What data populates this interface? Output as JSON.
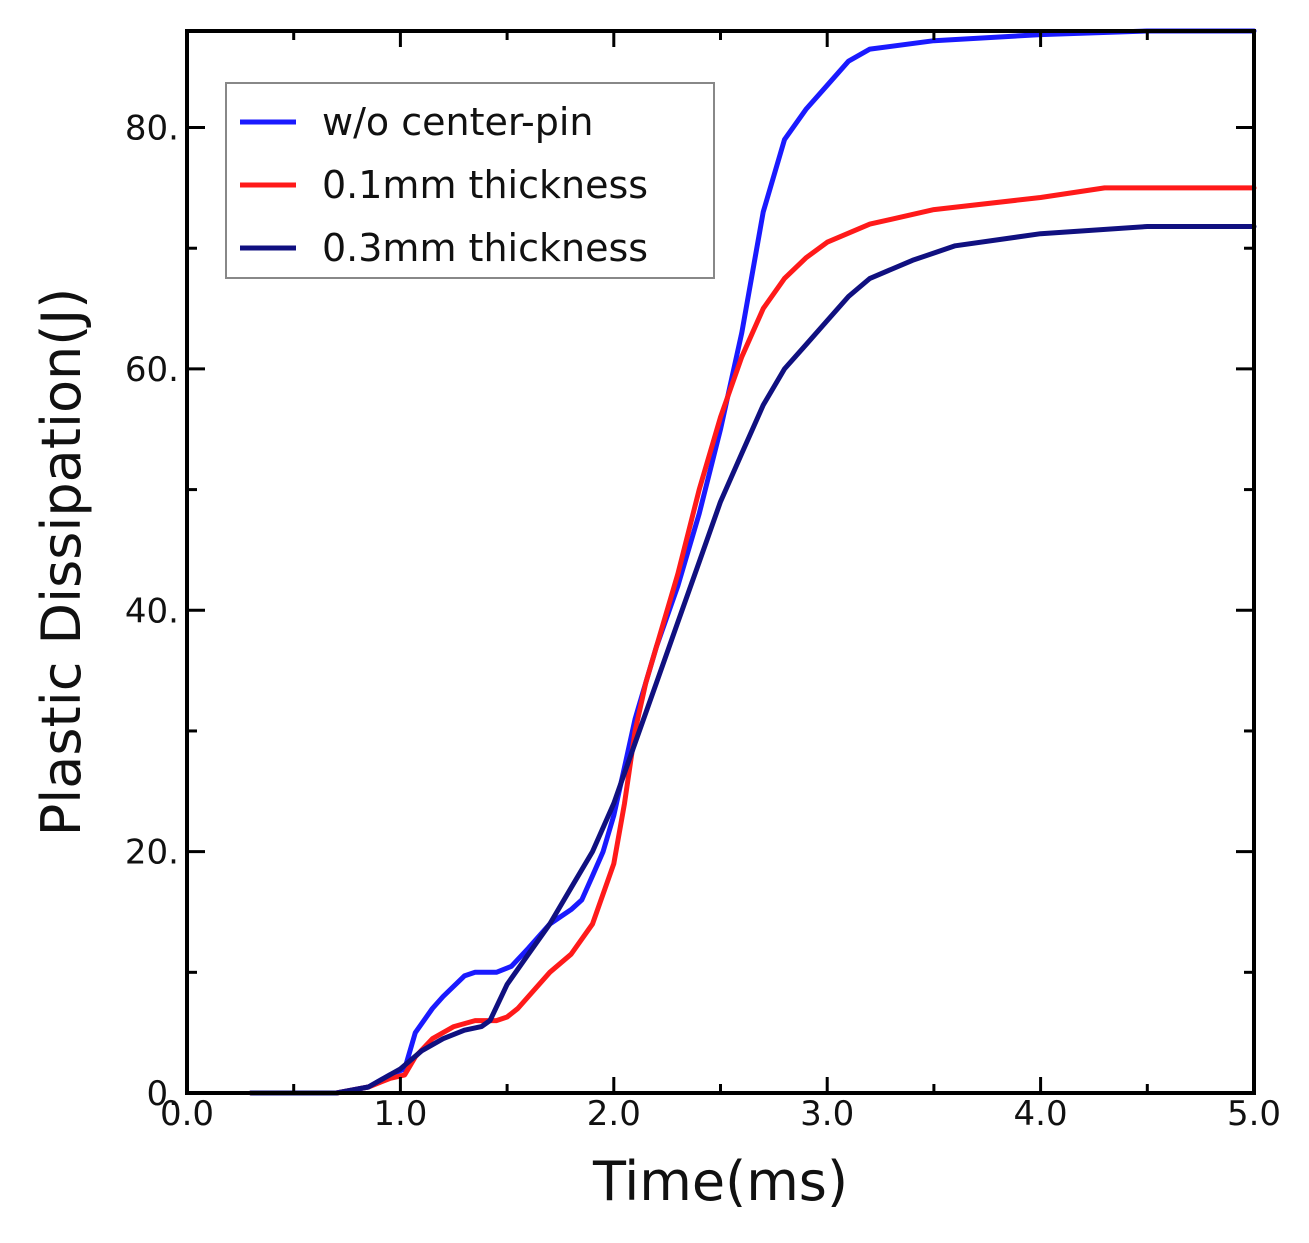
{
  "chart_data": {
    "type": "line",
    "title": "",
    "xlabel": "Time(ms)",
    "ylabel": "Plastic Dissipation(J)",
    "xlim": [
      0,
      5
    ],
    "ylim": [
      0,
      88
    ],
    "x_ticks": [
      0,
      1,
      2,
      3,
      4,
      5
    ],
    "x_tick_labels": [
      "0.0",
      "1.0",
      "2.0",
      "3.0",
      "4.0",
      "5.0"
    ],
    "y_major_ticks": [
      0,
      20,
      40,
      60,
      80
    ],
    "y_tick_labels": [
      "0.",
      "20.",
      "40.",
      "60.",
      "80."
    ],
    "y_minor_ticks": [
      10,
      30,
      50,
      70
    ],
    "legend_position": "top-left",
    "series": [
      {
        "name": "w/o center-pin",
        "color": "#1a1aff",
        "points": [
          [
            0.3,
            0
          ],
          [
            0.7,
            0
          ],
          [
            0.85,
            0.5
          ],
          [
            0.95,
            1.5
          ],
          [
            1.02,
            2
          ],
          [
            1.07,
            5
          ],
          [
            1.15,
            7
          ],
          [
            1.2,
            8
          ],
          [
            1.3,
            9.7
          ],
          [
            1.35,
            10
          ],
          [
            1.45,
            10
          ],
          [
            1.52,
            10.5
          ],
          [
            1.6,
            12
          ],
          [
            1.7,
            14
          ],
          [
            1.8,
            15.2
          ],
          [
            1.85,
            16
          ],
          [
            1.9,
            18
          ],
          [
            1.95,
            20
          ],
          [
            2.0,
            23
          ],
          [
            2.05,
            27
          ],
          [
            2.1,
            31
          ],
          [
            2.2,
            37
          ],
          [
            2.3,
            42
          ],
          [
            2.4,
            48
          ],
          [
            2.5,
            55
          ],
          [
            2.6,
            63
          ],
          [
            2.7,
            73
          ],
          [
            2.8,
            79
          ],
          [
            2.9,
            81.5
          ],
          [
            3.0,
            83.5
          ],
          [
            3.1,
            85.5
          ],
          [
            3.2,
            86.5
          ],
          [
            3.5,
            87.2
          ],
          [
            4.0,
            87.7
          ],
          [
            4.5,
            88
          ],
          [
            5.0,
            88
          ]
        ]
      },
      {
        "name": "0.1mm thickness",
        "color": "#ff1a1a",
        "points": [
          [
            0.3,
            0
          ],
          [
            0.7,
            0
          ],
          [
            0.85,
            0.5
          ],
          [
            0.95,
            1.2
          ],
          [
            1.02,
            1.5
          ],
          [
            1.07,
            3
          ],
          [
            1.15,
            4.5
          ],
          [
            1.25,
            5.5
          ],
          [
            1.35,
            6
          ],
          [
            1.45,
            6
          ],
          [
            1.5,
            6.3
          ],
          [
            1.55,
            7
          ],
          [
            1.6,
            8
          ],
          [
            1.7,
            10
          ],
          [
            1.8,
            11.5
          ],
          [
            1.9,
            14
          ],
          [
            2.0,
            19
          ],
          [
            2.05,
            24
          ],
          [
            2.1,
            30
          ],
          [
            2.15,
            34
          ],
          [
            2.2,
            37
          ],
          [
            2.3,
            43
          ],
          [
            2.4,
            50
          ],
          [
            2.5,
            56
          ],
          [
            2.6,
            61
          ],
          [
            2.7,
            65
          ],
          [
            2.8,
            67.5
          ],
          [
            2.9,
            69.2
          ],
          [
            3.0,
            70.5
          ],
          [
            3.2,
            72
          ],
          [
            3.5,
            73.2
          ],
          [
            4.0,
            74.2
          ],
          [
            4.3,
            75
          ],
          [
            5.0,
            75
          ]
        ]
      },
      {
        "name": "0.3mm thickness",
        "color": "#101080",
        "points": [
          [
            0.3,
            0
          ],
          [
            0.7,
            0
          ],
          [
            0.85,
            0.5
          ],
          [
            0.95,
            1.5
          ],
          [
            1.0,
            2
          ],
          [
            1.1,
            3.5
          ],
          [
            1.2,
            4.5
          ],
          [
            1.3,
            5.2
          ],
          [
            1.38,
            5.5
          ],
          [
            1.42,
            6
          ],
          [
            1.5,
            9
          ],
          [
            1.6,
            11.5
          ],
          [
            1.7,
            14
          ],
          [
            1.8,
            17
          ],
          [
            1.9,
            20
          ],
          [
            2.0,
            24
          ],
          [
            2.1,
            29
          ],
          [
            2.2,
            34
          ],
          [
            2.3,
            39
          ],
          [
            2.4,
            44
          ],
          [
            2.5,
            49
          ],
          [
            2.6,
            53
          ],
          [
            2.7,
            57
          ],
          [
            2.8,
            60
          ],
          [
            2.9,
            62
          ],
          [
            3.0,
            64
          ],
          [
            3.1,
            66
          ],
          [
            3.2,
            67.5
          ],
          [
            3.4,
            69
          ],
          [
            3.6,
            70.2
          ],
          [
            4.0,
            71.2
          ],
          [
            4.5,
            71.8
          ],
          [
            5.0,
            71.8
          ]
        ]
      }
    ]
  }
}
